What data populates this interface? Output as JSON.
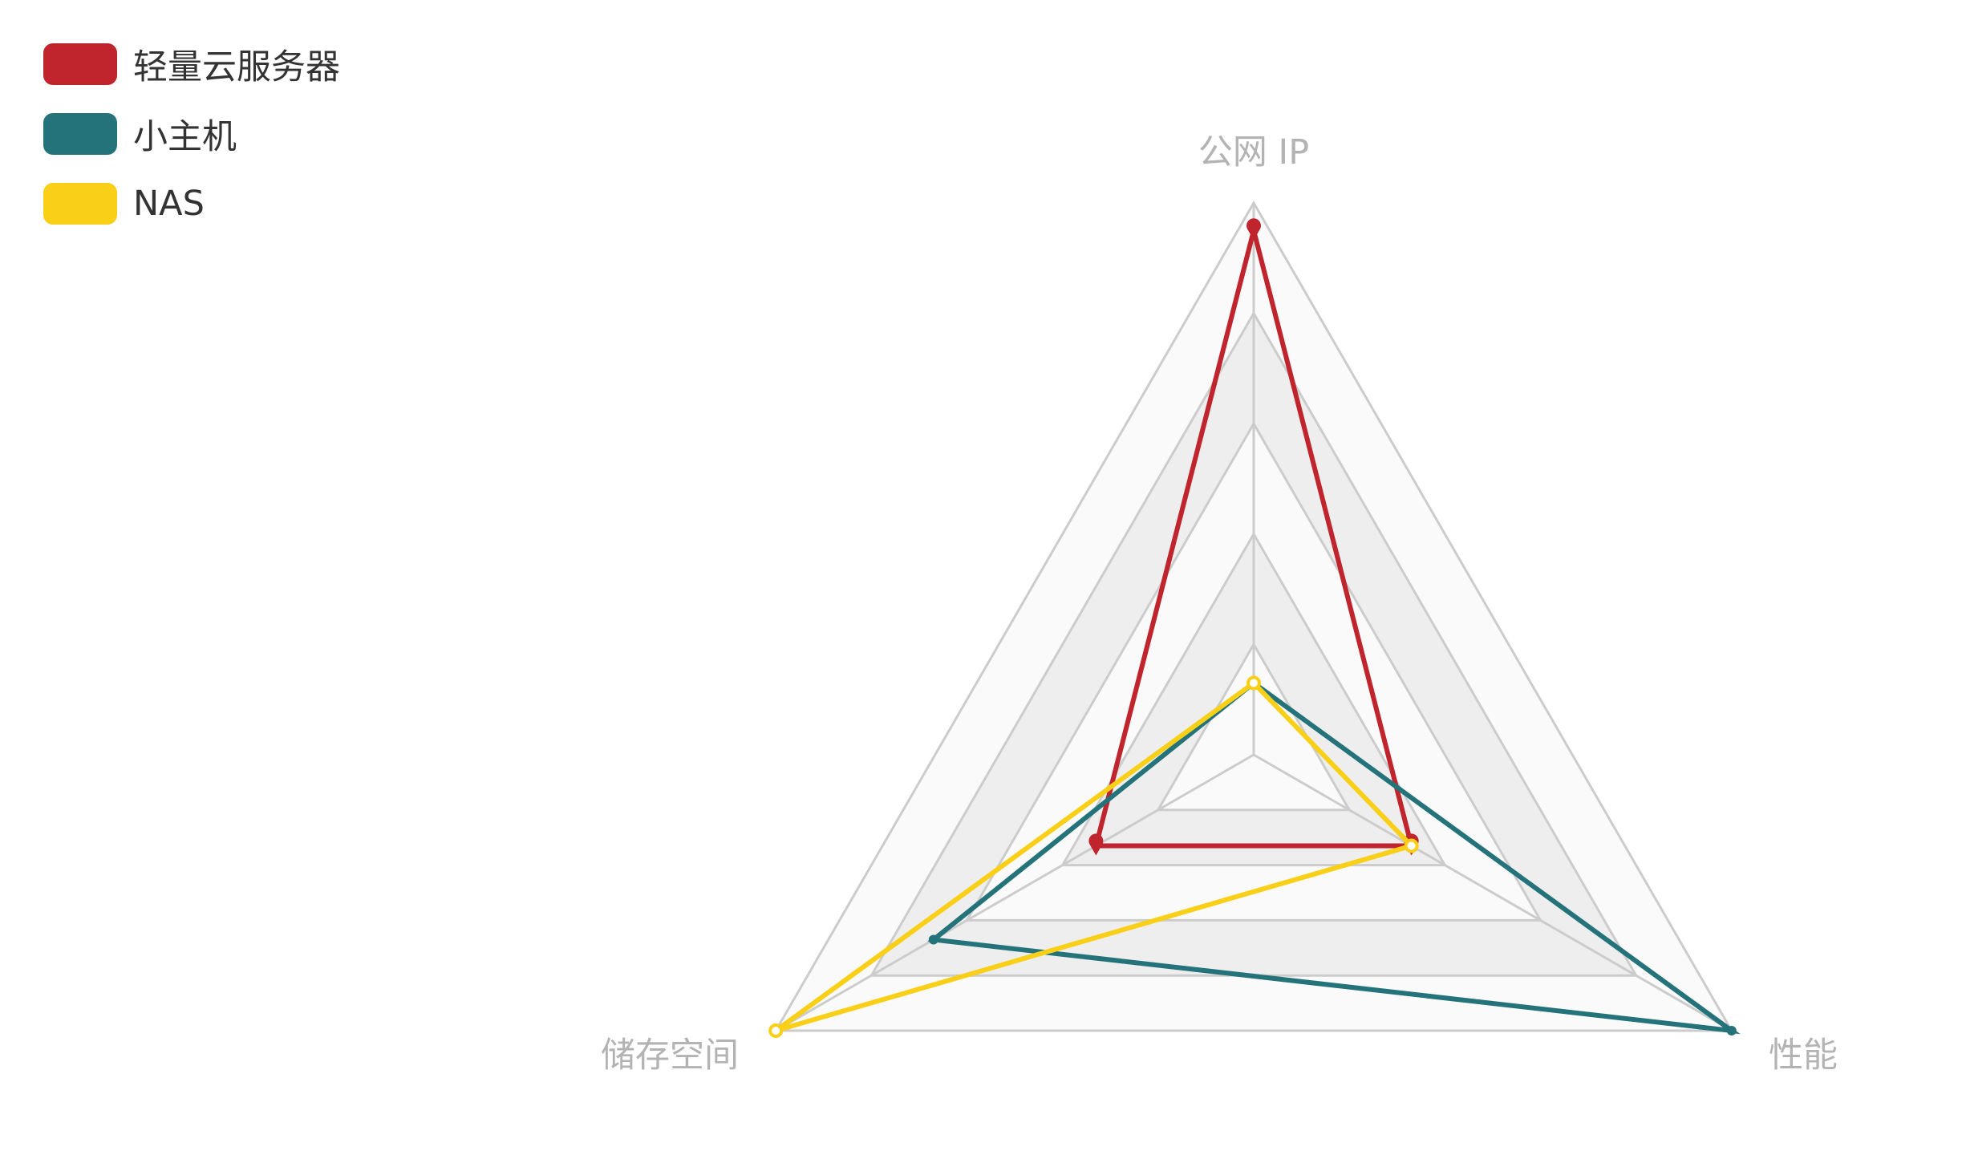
{
  "chart_data": {
    "type": "radar",
    "indicators": [
      {
        "name": "公网 IP",
        "max": 10
      },
      {
        "name": "性能",
        "max": 10
      },
      {
        "name": "储存空间",
        "max": 10
      }
    ],
    "split_number": 5,
    "split_area_colors": [
      "#fafafa",
      "#eeeeee"
    ],
    "series": [
      {
        "name": "轻量云服务器",
        "color": "#c0242c",
        "values": [
          9.5,
          3.3,
          3.3
        ],
        "symbol": "pin"
      },
      {
        "name": "小主机",
        "color": "#24737a",
        "values": [
          1.3,
          10,
          6.7
        ],
        "symbol": "dot"
      },
      {
        "name": "NAS",
        "color": "#f9cf17",
        "values": [
          1.3,
          3.3,
          10
        ],
        "symbol": "hollow"
      }
    ],
    "legend_position": "top-left"
  }
}
